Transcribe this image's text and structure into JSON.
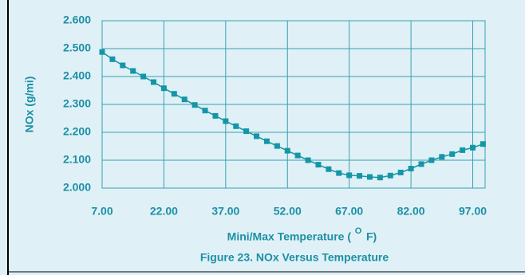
{
  "chart_data": {
    "type": "line",
    "y_label": "NOx  (g/mi)",
    "x_label": {
      "text": "Mini/Max Temperature  (",
      "sup": "O",
      "unit": "F)"
    },
    "caption": "Figure 23. NOx Versus Temperature",
    "x": [
      7,
      9.5,
      12,
      14.5,
      17,
      19.5,
      22,
      24.5,
      27,
      29.5,
      32,
      34.5,
      37,
      39.5,
      42,
      44.5,
      47,
      49.5,
      52,
      54.5,
      57,
      59.5,
      62,
      64.5,
      67,
      69.5,
      72,
      74.5,
      77,
      79.5,
      82,
      84.5,
      87,
      89.5,
      92,
      94.5,
      97,
      99.5
    ],
    "series": [
      {
        "color": "#1596a6",
        "values": [
          2.488,
          2.462,
          2.44,
          2.42,
          2.4,
          2.38,
          2.358,
          2.338,
          2.318,
          2.298,
          2.278,
          2.259,
          2.24,
          2.222,
          2.204,
          2.186,
          2.168,
          2.151,
          2.134,
          2.117,
          2.1,
          2.084,
          2.068,
          2.054,
          2.046,
          2.044,
          2.04,
          2.038,
          2.045,
          2.056,
          2.07,
          2.086,
          2.1,
          2.112,
          2.122,
          2.136,
          2.145,
          2.158
        ]
      }
    ],
    "xlim": [
      7,
      100
    ],
    "ylim": [
      2.0,
      2.6
    ],
    "xticks": [
      {
        "value": 7,
        "label": "7.00"
      },
      {
        "value": 22,
        "label": "22.00"
      },
      {
        "value": 37,
        "label": "37.00"
      },
      {
        "value": 52,
        "label": "52.00"
      },
      {
        "value": 67,
        "label": "67.00"
      },
      {
        "value": 82,
        "label": "82.00"
      },
      {
        "value": 97,
        "label": "97.00"
      }
    ],
    "yticks": [
      {
        "value": 2.0,
        "label": "2.000"
      },
      {
        "value": 2.1,
        "label": "2.100"
      },
      {
        "value": 2.2,
        "label": "2.200"
      },
      {
        "value": 2.3,
        "label": "2.300"
      },
      {
        "value": 2.4,
        "label": "2.400"
      },
      {
        "value": 2.5,
        "label": "2.500"
      },
      {
        "value": 2.6,
        "label": "2.600"
      }
    ],
    "grid": true
  }
}
